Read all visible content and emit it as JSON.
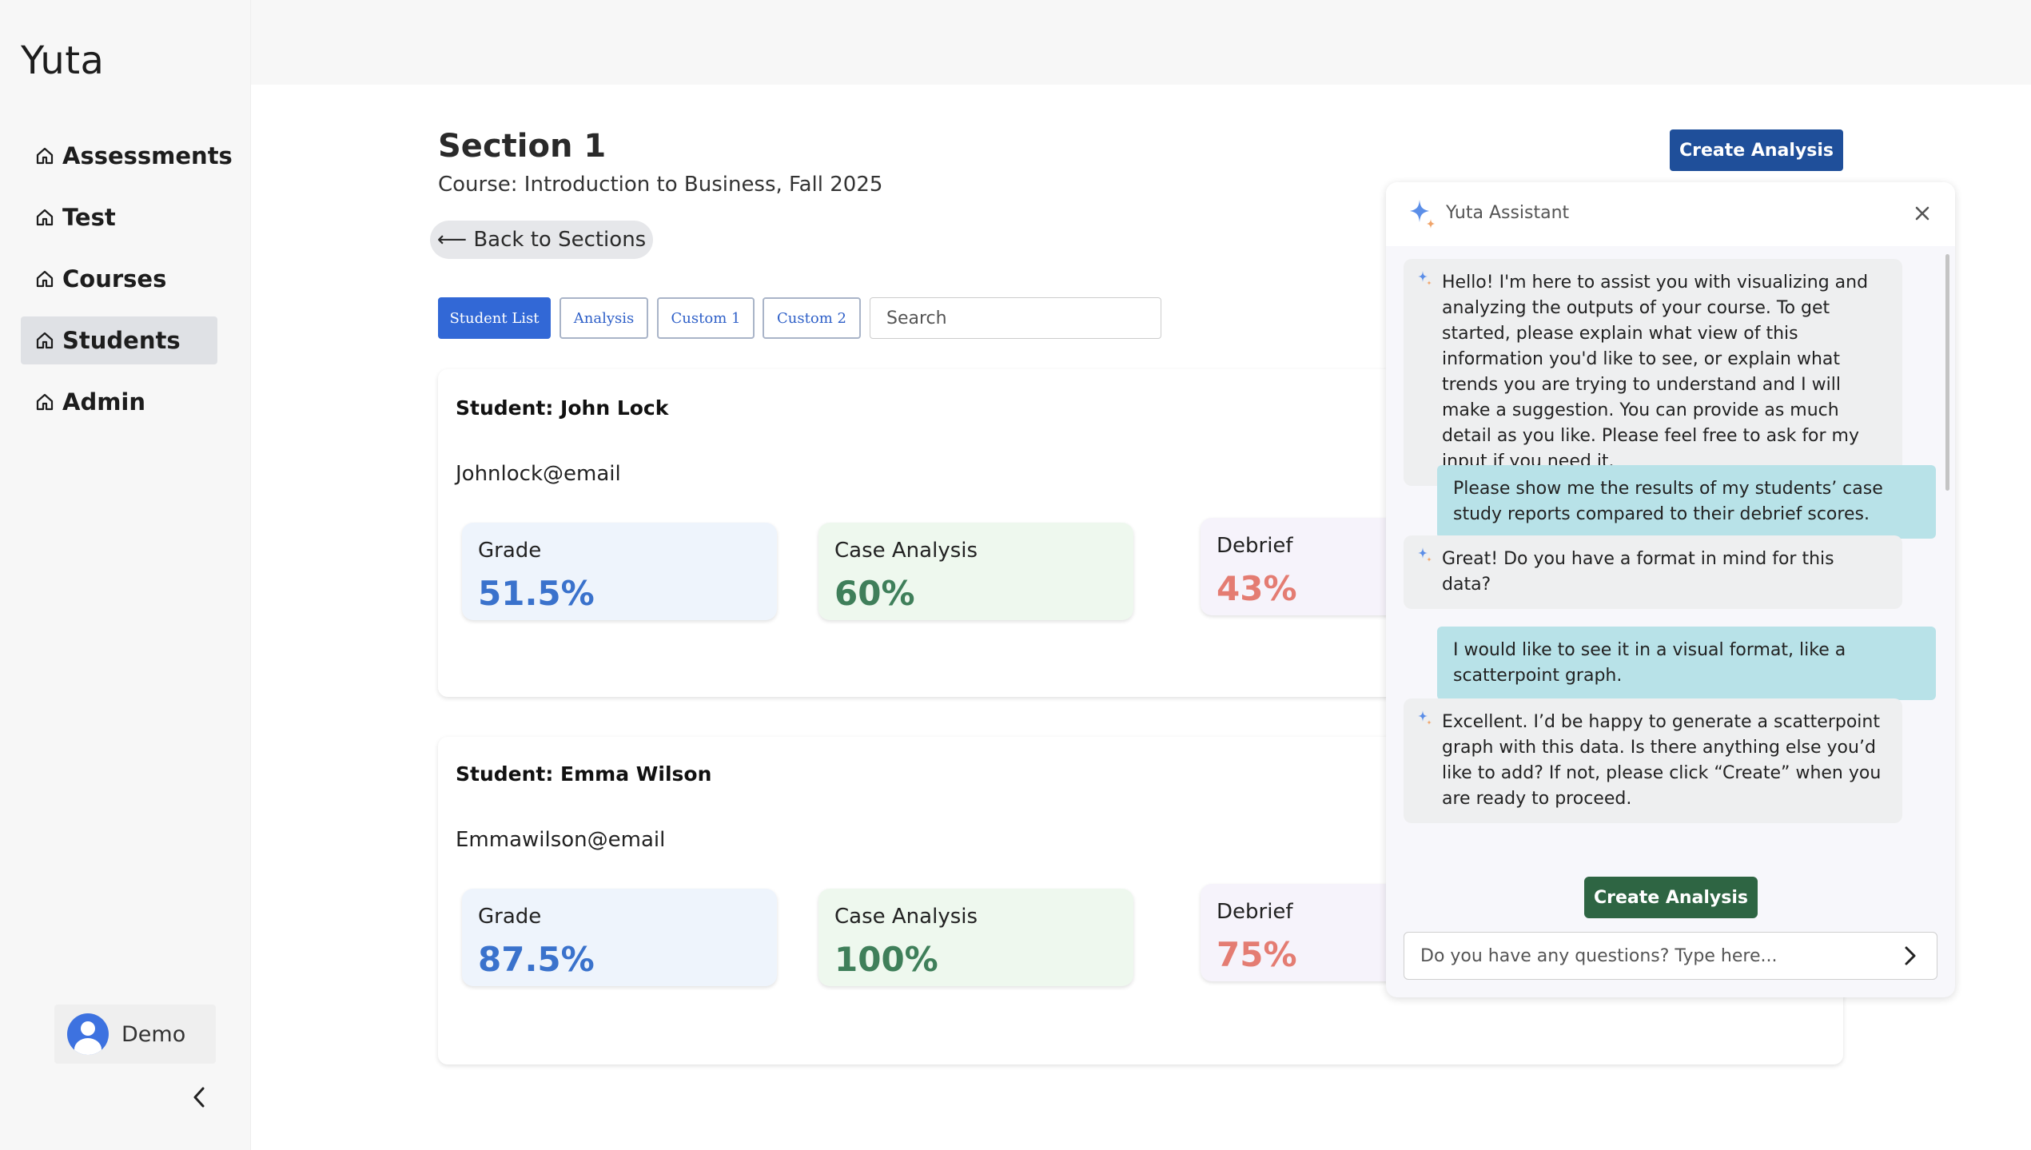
{
  "app": {
    "logo": "Yuta"
  },
  "sidebar": {
    "items": [
      {
        "label": "Assessments",
        "icon": "home-icon",
        "active": false
      },
      {
        "label": "Test",
        "icon": "home-icon",
        "active": false
      },
      {
        "label": "Courses",
        "icon": "home-icon",
        "active": false
      },
      {
        "label": "Students",
        "icon": "home-icon",
        "active": true
      },
      {
        "label": "Admin",
        "icon": "home-icon",
        "active": false
      }
    ],
    "user": {
      "name": "Demo",
      "icon": "user-avatar-icon"
    },
    "collapse_icon": "chevron-left-icon"
  },
  "header": {
    "title": "Section 1",
    "subtitle": "Course: Introduction to Business, Fall 2025",
    "back_label": "⟵ Back to Sections",
    "create_label": "Create Analysis"
  },
  "tabs": [
    {
      "label": "Student List",
      "active": true
    },
    {
      "label": "Analysis",
      "active": false
    },
    {
      "label": "Custom 1",
      "active": false
    },
    {
      "label": "Custom 2",
      "active": false
    }
  ],
  "search": {
    "placeholder": "Search",
    "value": ""
  },
  "students": [
    {
      "name": "Student: John Lock",
      "email": "Johnlock@email",
      "metrics": {
        "grade": {
          "label": "Grade",
          "value": "51.5%"
        },
        "case": {
          "label": "Case Analysis",
          "value": "60%"
        },
        "debrief": {
          "label": "Debrief",
          "value": "43%"
        }
      }
    },
    {
      "name": "Student: Emma Wilson",
      "email": "Emmawilson@email",
      "metrics": {
        "grade": {
          "label": "Grade",
          "value": "87.5%"
        },
        "case": {
          "label": "Case Analysis",
          "value": "100%"
        },
        "debrief": {
          "label": "Debrief",
          "value": "75%"
        }
      }
    }
  ],
  "assistant": {
    "title": "Yuta Assistant",
    "close_icon": "close-icon",
    "messages": [
      {
        "role": "assistant",
        "text": "Hello! I'm here to assist you with visualizing and analyzing the outputs of your course. To get started, please explain what view of this information you'd like to see, or explain what trends you are trying to understand and I will make a suggestion. You can provide as much detail as you like. Please feel free to ask for my input if you need it."
      },
      {
        "role": "user",
        "text": "Please show me the results of my students’ case study reports compared to their debrief scores."
      },
      {
        "role": "assistant",
        "text": "Great! Do you have a format in mind for this data?"
      },
      {
        "role": "user",
        "text": "I would like to see it in a visual format, like a scatterpoint graph."
      },
      {
        "role": "assistant",
        "text": "Excellent. I’d be happy to generate a scatterpoint graph with this data. Is there anything else you’d like to add? If not, please click “Create” when you are ready to proceed."
      }
    ],
    "create_label": "Create Analysis",
    "input_placeholder": "Do you have any questions? Type here...",
    "send_icon": "chevron-right-icon"
  },
  "colors": {
    "primary_blue": "#1f4f9a",
    "tab_active": "#3268d6",
    "grade_value": "#3a72cc",
    "case_value": "#3f7f5a",
    "debrief_value": "#e47c72",
    "assistant_user_bubble": "#b8e2e8",
    "assistant_create": "#2e6543"
  }
}
